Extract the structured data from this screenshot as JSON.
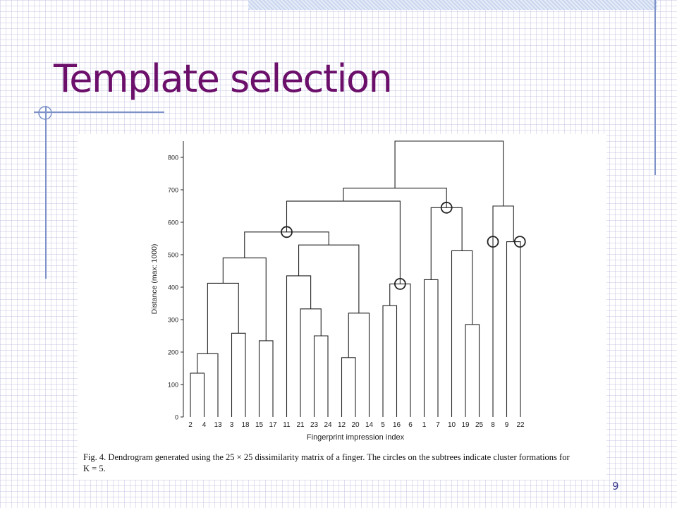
{
  "slide": {
    "title": "Template selection",
    "page_number": "9",
    "caption_line1": "Fig. 4. Dendrogram generated using the 25 × 25 dissimilarity matrix of a finger. The circles on the subtrees indicate cluster formations for",
    "caption_line2": "K = 5."
  },
  "chart_data": {
    "type": "dendrogram",
    "xlabel": "Fingerprint impression index",
    "ylabel": "Distance (max: 1000)",
    "ylim": [
      0,
      850
    ],
    "yticks": [
      0,
      100,
      200,
      300,
      400,
      500,
      600,
      700,
      800
    ],
    "leaves": [
      2,
      4,
      13,
      3,
      18,
      15,
      17,
      11,
      21,
      23,
      24,
      12,
      20,
      14,
      5,
      16,
      6,
      1,
      7,
      10,
      19,
      25,
      8,
      9,
      22
    ],
    "merges": [
      {
        "children": [
          2,
          4
        ],
        "height": 135
      },
      {
        "children": [
          [
            2,
            4
          ],
          13
        ],
        "height": 195
      },
      {
        "children": [
          3,
          18
        ],
        "height": 258
      },
      {
        "children": [
          [
            [
              2,
              4
            ],
            13
          ],
          [
            3,
            18
          ]
        ],
        "height": 412
      },
      {
        "children": [
          15,
          17
        ],
        "height": 235
      },
      {
        "children": [
          [
            [
              [
                2,
                4
              ],
              13
            ],
            [
              3,
              18
            ]
          ],
          [
            15,
            17
          ]
        ],
        "height": 490
      },
      {
        "children": [
          23,
          24
        ],
        "height": 250
      },
      {
        "children": [
          21,
          [
            23,
            24
          ]
        ],
        "height": 333
      },
      {
        "children": [
          11,
          [
            21,
            [
              23,
              24
            ]
          ]
        ],
        "height": 435
      },
      {
        "children": [
          12,
          20
        ],
        "height": 183
      },
      {
        "children": [
          [
            12,
            20
          ],
          14
        ],
        "height": 320
      },
      {
        "children": [
          [
            11,
            [
              21,
              [
                23,
                24
              ]
            ]
          ],
          [
            [
              12,
              20
            ],
            14
          ]
        ],
        "height": 530
      },
      {
        "children": [
          "A",
          "B"
        ],
        "height": 570,
        "note": "group {2,4,13,3,18,15,17} with group {11,21,23,24,12,20,14}"
      },
      {
        "children": [
          5,
          16
        ],
        "height": 343
      },
      {
        "children": [
          [
            5,
            16
          ],
          6
        ],
        "height": 410
      },
      {
        "children": [
          "AB",
          [
            [
              5,
              16
            ],
            6
          ]
        ],
        "height": 665
      },
      {
        "children": [
          19,
          25
        ],
        "height": 285
      },
      {
        "children": [
          10,
          [
            19,
            25
          ]
        ],
        "height": 512
      },
      {
        "children": [
          1,
          7
        ],
        "height": 423
      },
      {
        "children": [
          [
            1,
            7
          ],
          [
            10,
            [
              19,
              25
            ]
          ]
        ],
        "height": 645
      },
      {
        "children": [
          "AB56",
          "C"
        ],
        "height": 705
      },
      {
        "children": [
          9,
          22
        ],
        "height": 540
      },
      {
        "children": [
          8,
          [
            9,
            22
          ]
        ],
        "height": 650
      },
      {
        "children": [
          "root-left",
          "root-right"
        ],
        "height": 850
      }
    ],
    "cluster_circles": [
      {
        "on_merge_height": 570,
        "marks": "join of leaves 2–17 and 11–14"
      },
      {
        "on_merge_height": 410,
        "marks": "cluster of leaves 5, 16, 6"
      },
      {
        "on_merge_height": 645,
        "marks": "cluster of leaves 1, 7, 10, 19, 25"
      },
      {
        "on_leaf": 8,
        "marks": "singleton 8"
      },
      {
        "on_merge_height": 540,
        "marks": "cluster of leaves 9, 22"
      }
    ]
  }
}
